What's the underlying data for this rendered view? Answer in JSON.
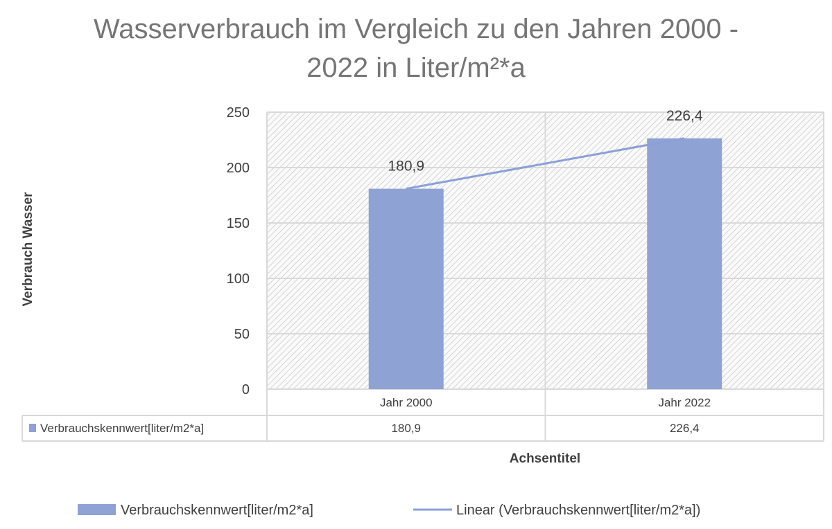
{
  "chart_data": {
    "type": "bar",
    "title_line1": "Wasserverbrauch im Vergleich zu den Jahren 2000 -",
    "title_line2": "2022 in  Liter/m²*a",
    "categories": [
      "Jahr 2000",
      "Jahr 2022"
    ],
    "series": [
      {
        "name": "Verbrauchskennwert[liter/m2*a]",
        "values": [
          180.9,
          226.4
        ],
        "labels": [
          "180,9",
          "226,4"
        ]
      }
    ],
    "trendline": {
      "name": "Linear (Verbrauchskennwert[liter/m2*a])",
      "type": "linear"
    },
    "ylabel": "Verbrauch Wasser",
    "xlabel": "Achsentitel",
    "ylim": [
      0,
      250
    ],
    "yticks": [
      0,
      50,
      100,
      150,
      200,
      250
    ],
    "grid": true,
    "data_table": true,
    "legend_position": "bottom",
    "colors": {
      "bar": "#8fa2d4",
      "trend": "#8aa0d8",
      "grid": "#d9d9d9"
    }
  }
}
